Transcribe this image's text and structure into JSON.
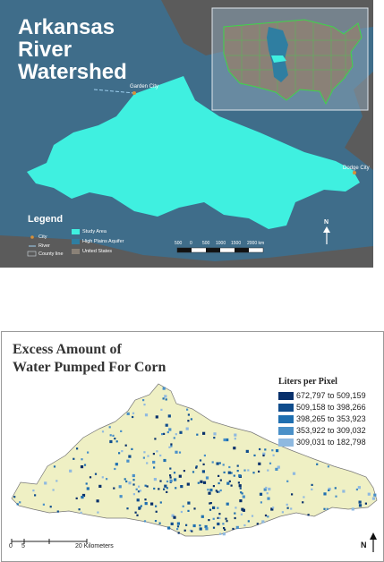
{
  "map1": {
    "title_lines": [
      "Arkansas",
      "River",
      "Watershed"
    ],
    "cities": [
      "Garden City",
      "Dodge City"
    ],
    "legend": {
      "title": "Legend",
      "items": [
        "City",
        "River",
        "County line",
        "Study Area",
        "High Plains Aquifer",
        "United States"
      ]
    },
    "scalebar": {
      "labels": [
        "500",
        "0",
        "500",
        "1000",
        "1500",
        "2000 km"
      ]
    },
    "north_label": "N",
    "colors": {
      "background": "#3f6d8a",
      "study_area": "#3ff0e0",
      "aquifer": "#2f7ea1",
      "united_states": "#8a8177",
      "land": "#5b5b5b",
      "city": "#d6903a"
    }
  },
  "map2": {
    "title_lines": [
      "Excess Amount of",
      "Water Pumped For Corn"
    ],
    "legend": {
      "title": "Liters per Pixel",
      "classes": [
        {
          "label": "672,797 to 509,159",
          "color": "#08306b"
        },
        {
          "label": "509,158 to 398,266",
          "color": "#0f4c8c"
        },
        {
          "label": "398,265 to 353,923",
          "color": "#1f6fb0"
        },
        {
          "label": "353,922 to 309,032",
          "color": "#4a90c8"
        },
        {
          "label": "309,031 to 182,798",
          "color": "#8fb9e0"
        }
      ]
    },
    "scalebar": {
      "labels": [
        "0",
        "5",
        "20 Kilometers"
      ]
    },
    "north_label": "N",
    "colors": {
      "watershed_fill": "#eff0c4",
      "watershed_outline": "#777777"
    }
  }
}
